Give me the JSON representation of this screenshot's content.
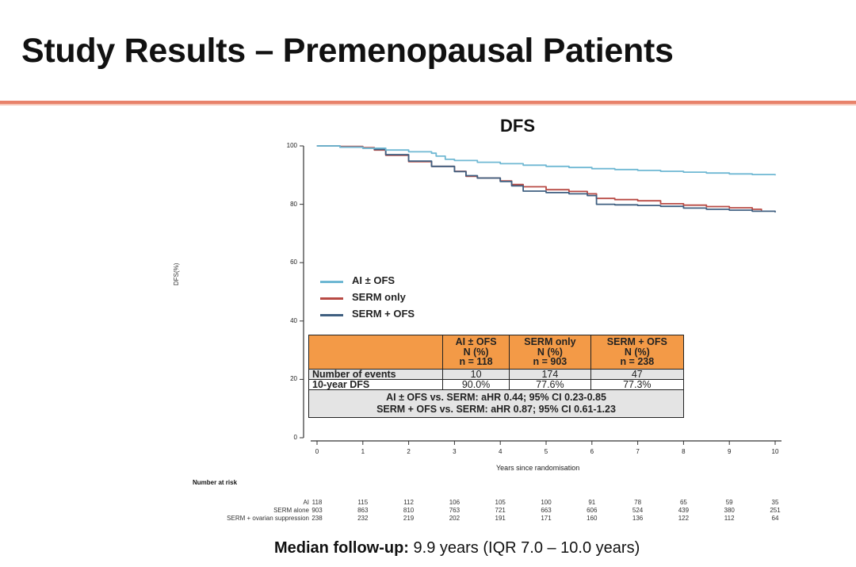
{
  "slide": {
    "title": "Study Results – Premenopausal Patients",
    "accent_color": "#e8826a",
    "footer_bold": "Median follow-up:",
    "footer_text": " 9.9 years (IQR 7.0 – 10.0 years)"
  },
  "chart_data": {
    "type": "line",
    "title": "DFS",
    "xlabel": "Years since randomisation",
    "ylabel": "DFS(%)",
    "xlim": [
      0,
      10
    ],
    "ylim": [
      0,
      100
    ],
    "x_ticks": [
      "0",
      "1",
      "2",
      "3",
      "4",
      "5",
      "6",
      "7",
      "8",
      "9",
      "10"
    ],
    "y_ticks": [
      "0",
      "20",
      "40",
      "60",
      "80",
      "100"
    ],
    "grid": false,
    "legend_position": "center-left",
    "series": [
      {
        "name": "AI ± OFS",
        "color": "#6fb8d3",
        "x": [
          0,
          0.5,
          1.0,
          1.5,
          2.0,
          2.5,
          2.6,
          2.8,
          3.0,
          3.5,
          4.0,
          4.5,
          5.0,
          5.5,
          6.0,
          6.5,
          7.0,
          7.5,
          8.0,
          8.5,
          9.0,
          9.5,
          10.0
        ],
        "y": [
          100,
          99.6,
          99.2,
          98.6,
          98.0,
          97.5,
          96.5,
          95.4,
          95.0,
          94.4,
          93.9,
          93.4,
          93.0,
          92.6,
          92.2,
          91.9,
          91.6,
          91.3,
          91.0,
          90.7,
          90.4,
          90.2,
          90.0
        ]
      },
      {
        "name": "SERM only",
        "color": "#b84a44",
        "x": [
          0,
          0.5,
          1.0,
          1.25,
          1.5,
          2.0,
          2.5,
          3.0,
          3.25,
          3.5,
          4.0,
          4.25,
          4.5,
          5.0,
          5.5,
          5.9,
          6.1,
          6.5,
          7.0,
          7.5,
          8.0,
          8.5,
          9.0,
          9.5,
          9.7
        ],
        "y": [
          100,
          99.8,
          99.4,
          98.6,
          96.8,
          94.6,
          93.0,
          91.3,
          89.6,
          89.0,
          88.0,
          86.8,
          86.0,
          85.0,
          84.4,
          83.6,
          82.0,
          81.6,
          81.2,
          80.2,
          79.7,
          79.2,
          78.8,
          78.3,
          77.9
        ]
      },
      {
        "name": "SERM + OFS",
        "color": "#3f5f80",
        "x": [
          0,
          0.5,
          1.0,
          1.25,
          1.5,
          2.0,
          2.5,
          3.0,
          3.25,
          3.5,
          4.0,
          4.25,
          4.5,
          5.0,
          5.5,
          5.9,
          6.1,
          6.5,
          7.0,
          7.5,
          8.0,
          8.5,
          9.0,
          9.5,
          10.0
        ],
        "y": [
          100,
          99.6,
          99.2,
          98.8,
          97.0,
          94.8,
          93.0,
          91.2,
          89.8,
          89.0,
          87.8,
          86.3,
          84.5,
          84.0,
          83.6,
          83.0,
          80.0,
          79.8,
          79.6,
          79.3,
          78.7,
          78.3,
          78.0,
          77.6,
          77.3
        ]
      }
    ],
    "summary_table": {
      "header": [
        "",
        "AI ± OFS\nN (%)\nn = 118",
        "SERM only\nN (%)\nn = 903",
        "SERM + OFS\nN (%)\nn = 238"
      ],
      "header_lines": [
        [
          "AI ± OFS",
          "N (%)",
          "n = 118"
        ],
        [
          "SERM only",
          "N (%)",
          "n = 903"
        ],
        [
          "SERM + OFS",
          "N (%)",
          "n = 238"
        ]
      ],
      "rows": [
        {
          "label": "Number of events",
          "values": [
            "10",
            "174",
            "47"
          ]
        },
        {
          "label": "10-year DFS",
          "values": [
            "90.0%",
            "77.6%",
            "77.3%"
          ]
        }
      ],
      "comparisons": [
        "AI ± OFS vs. SERM: aHR 0.44; 95% CI 0.23-0.85",
        "SERM + OFS vs. SERM: aHR 0.87; 95% CI 0.61-1.23"
      ],
      "header_color": "#f39a47"
    },
    "number_at_risk": {
      "title": "Number at risk",
      "groups": [
        {
          "label": "AI",
          "values": [
            "118",
            "115",
            "112",
            "106",
            "105",
            "100",
            "91",
            "78",
            "65",
            "59",
            "35"
          ]
        },
        {
          "label": "SERM alone",
          "values": [
            "903",
            "863",
            "810",
            "763",
            "721",
            "663",
            "606",
            "524",
            "439",
            "380",
            "251"
          ]
        },
        {
          "label": "SERM + ovarian suppression",
          "values": [
            "238",
            "232",
            "219",
            "202",
            "191",
            "171",
            "160",
            "136",
            "122",
            "112",
            "64"
          ]
        }
      ]
    }
  }
}
